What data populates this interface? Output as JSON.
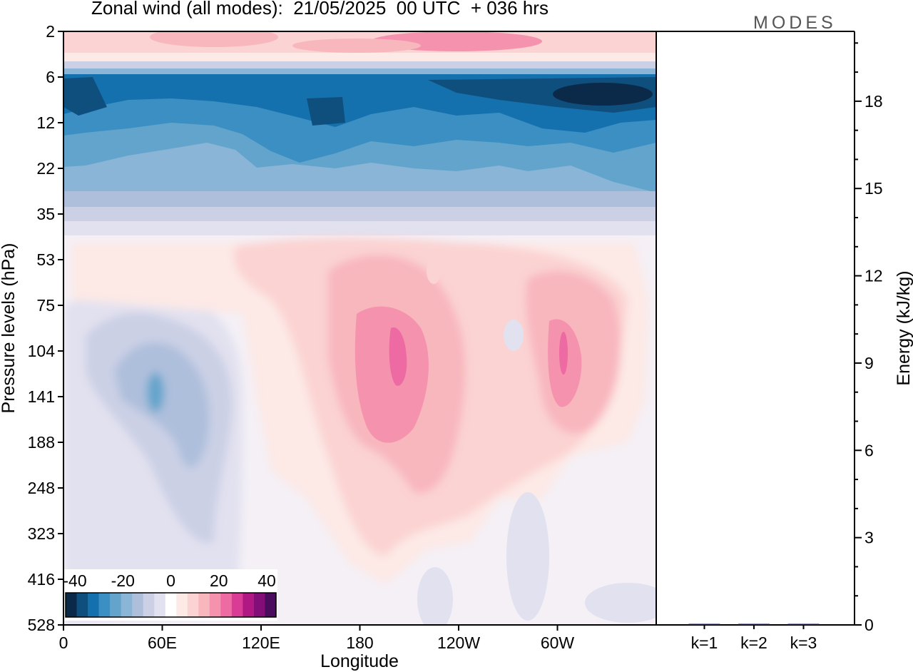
{
  "header": {
    "title": "Zonal wind (all modes):  21/05/2025  00 UTC  + 036 hrs",
    "brand": "MODES"
  },
  "chart_data": [
    {
      "type": "heatmap",
      "title": "Zonal wind (all modes):  21/05/2025  00 UTC  + 036 hrs",
      "xlabel": "Longitude",
      "ylabel": "Pressure levels (hPa)",
      "x_ticks": [
        "0",
        "60E",
        "120E",
        "180",
        "120W",
        "60W"
      ],
      "x_tick_degrees": [
        0,
        60,
        120,
        180,
        240,
        300
      ],
      "xlim_degrees": [
        0,
        360
      ],
      "y_ticks": [
        "2",
        "6",
        "12",
        "22",
        "35",
        "53",
        "75",
        "104",
        "141",
        "188",
        "248",
        "323",
        "416",
        "528"
      ],
      "y_scale": "categorical levels, 2 hPa at top, 528 hPa at bottom",
      "colorbar": {
        "labels": [
          "-40",
          "-20",
          "0",
          "20",
          "40"
        ],
        "levels": [
          -45,
          -40,
          -35,
          -30,
          -25,
          -20,
          -15,
          -10,
          -5,
          0,
          5,
          10,
          15,
          20,
          25,
          30,
          35,
          40,
          45
        ],
        "colors": [
          "#0b2a49",
          "#0e4f7e",
          "#1471ad",
          "#3b8fc2",
          "#63a4cc",
          "#8ab5d6",
          "#aebfdc",
          "#cbd0e5",
          "#e2e1ef",
          "#ffffff",
          "#fde9e6",
          "#fbd3d2",
          "#f8b6bd",
          "#f592ae",
          "#ed6aa3",
          "#d93c95",
          "#b11884",
          "#840e77",
          "#4b0b5e"
        ],
        "placement": "bottom-left inside plot"
      },
      "features": [
        {
          "description": "positive wind band",
          "levels_hPa": [
            2,
            4
          ],
          "value_range": [
            10,
            25
          ]
        },
        {
          "description": "strong easterly band",
          "levels_hPa": [
            6,
            30
          ],
          "value_range": [
            -45,
            -15
          ],
          "min_near": "30W, 8 hPa"
        },
        {
          "description": "westerly core",
          "near": "180-150W",
          "levels_hPa": [
            75,
            190
          ],
          "peak": 28
        },
        {
          "description": "westerly core",
          "near": "60W",
          "levels_hPa": [
            90,
            170
          ],
          "peak": 25
        },
        {
          "description": "easterly lobe",
          "near": "30E-90E",
          "levels_hPa": [
            75,
            300
          ],
          "peak": -20
        }
      ]
    },
    {
      "type": "bar",
      "categories": [
        "k=1",
        "k=2",
        "k=3"
      ],
      "values": [
        0.02,
        0.01,
        0.01
      ],
      "ylabel": "Energy (kJ/kg)",
      "y_ticks": [
        "0",
        "3",
        "6",
        "9",
        "12",
        "15",
        "18"
      ],
      "ylim": [
        0,
        20.4
      ],
      "grid": false
    }
  ]
}
